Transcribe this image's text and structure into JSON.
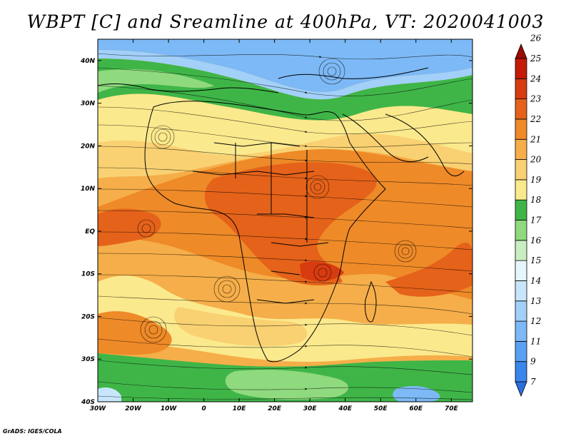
{
  "title": "WBPT [C] and Sreamline at 400hPa, VT: 2020041003",
  "credit": "GrADS: IGES/COLA",
  "map": {
    "lon_labels": [
      "30W",
      "20W",
      "10W",
      "0",
      "10E",
      "20E",
      "30E",
      "40E",
      "50E",
      "60E",
      "70E"
    ],
    "lat_labels": [
      "40N",
      "30N",
      "20N",
      "10N",
      "EQ",
      "10S",
      "20S",
      "30S",
      "40S"
    ]
  },
  "chart_data": {
    "type": "heatmap",
    "title": "WBPT [C] and Sreamline at 400hPa, VT: 2020041003",
    "variable": "WBPT [C]",
    "level": "400hPa",
    "valid_time": "2020041003",
    "lon_range": [
      -30,
      76
    ],
    "lat_range": [
      -40,
      45
    ],
    "colorbar": {
      "labels": [
        "7",
        "9",
        "11",
        "12",
        "13",
        "14",
        "15",
        "16",
        "17",
        "18",
        "19",
        "20",
        "21",
        "22",
        "23",
        "24",
        "25",
        "26"
      ],
      "colors": [
        "#2a6fe0",
        "#3a86ec",
        "#5aa1f3",
        "#7db9f6",
        "#a2d0f9",
        "#c8e6fb",
        "#e6f7fb",
        "#c9eec2",
        "#8fd97e",
        "#3fb548",
        "#fbe98d",
        "#f9d172",
        "#f5ae49",
        "#ee8a28",
        "#e5621a",
        "#d83b10",
        "#c41a08",
        "#9c0a04"
      ]
    }
  }
}
